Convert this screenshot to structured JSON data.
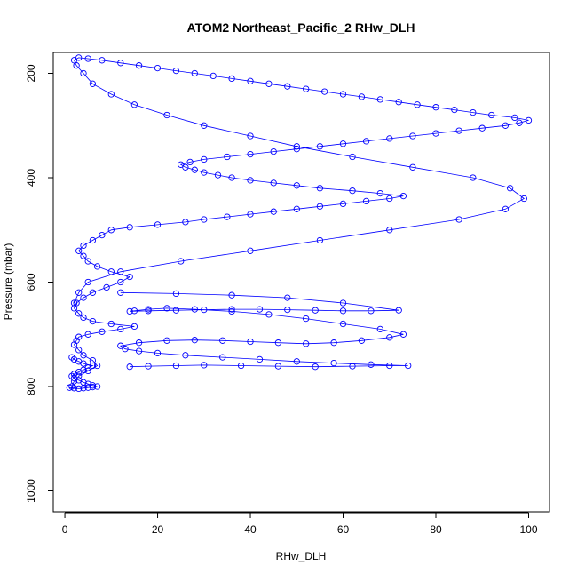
{
  "chart_data": {
    "type": "scatter",
    "title": "ATOM2 Northeast_Pacific_2 RHw_DLH",
    "xlabel": "RHw_DLH",
    "ylabel": "Pressure (mbar)",
    "xlim": [
      -2.5,
      104.5
    ],
    "ylim": [
      1040,
      160
    ],
    "y_reversed": true,
    "x_ticks": [
      0,
      20,
      40,
      60,
      80,
      100
    ],
    "y_ticks": [
      200,
      400,
      600,
      800,
      1000
    ],
    "marker": "open-circle",
    "connected_lines": true,
    "color": "#0000ff",
    "grid": false,
    "series": [
      {
        "x": [
          1.5,
          2,
          3,
          5,
          7,
          6,
          4,
          3,
          2,
          2.5,
          3,
          5,
          8,
          12,
          15,
          10,
          6,
          4,
          3,
          2,
          2.5,
          4,
          6,
          9,
          12,
          14,
          10,
          7,
          5,
          4,
          3,
          4,
          6,
          8,
          10,
          14,
          20,
          26,
          30,
          35,
          40,
          45,
          50,
          55,
          60,
          65,
          70,
          73,
          68,
          62,
          55,
          50,
          45,
          40,
          36,
          33,
          30,
          28,
          26,
          25,
          27,
          30,
          35,
          40,
          45,
          50,
          55,
          60,
          65,
          70,
          75,
          80,
          85,
          90,
          95,
          98,
          100,
          97,
          92,
          88,
          84,
          80,
          76,
          72,
          68,
          64,
          60,
          56,
          52,
          48,
          44,
          40,
          36,
          32,
          28,
          24,
          20,
          16,
          12,
          8,
          5,
          3,
          2,
          2.5,
          4,
          6,
          10,
          15,
          22,
          30,
          40,
          50,
          62,
          75,
          88,
          96,
          99,
          95,
          85,
          70,
          55,
          40,
          25,
          12,
          5,
          3,
          2
        ],
        "y": [
          800,
          790,
          780,
          770,
          760,
          750,
          740,
          730,
          720,
          712,
          705,
          700,
          695,
          690,
          685,
          680,
          675,
          668,
          660,
          650,
          640,
          630,
          620,
          610,
          600,
          590,
          580,
          570,
          560,
          550,
          540,
          530,
          520,
          510,
          500,
          495,
          490,
          485,
          480,
          475,
          470,
          465,
          460,
          455,
          450,
          445,
          440,
          435,
          430,
          425,
          420,
          415,
          410,
          405,
          400,
          395,
          390,
          385,
          380,
          375,
          370,
          365,
          360,
          355,
          350,
          345,
          340,
          335,
          330,
          325,
          320,
          315,
          310,
          305,
          300,
          295,
          290,
          285,
          280,
          275,
          270,
          265,
          260,
          255,
          250,
          245,
          240,
          235,
          230,
          225,
          220,
          215,
          210,
          205,
          200,
          195,
          190,
          185,
          180,
          175,
          172,
          170,
          175,
          185,
          200,
          220,
          240,
          260,
          280,
          300,
          320,
          340,
          360,
          380,
          400,
          420,
          440,
          460,
          480,
          500,
          520,
          540,
          560,
          580,
          600,
          620,
          640
        ]
      },
      {
        "x": [
          14,
          18,
          24,
          30,
          38,
          46,
          54,
          62,
          70,
          74,
          66,
          58,
          50,
          42,
          34,
          26,
          20,
          16,
          13,
          12,
          16,
          22,
          28,
          34,
          40,
          46,
          52,
          58,
          64,
          70,
          73,
          68,
          60,
          52,
          44,
          36,
          28,
          22,
          18,
          15,
          14,
          18,
          24,
          30,
          36,
          42,
          48,
          54,
          60,
          66,
          72,
          60,
          48,
          36,
          24,
          12
        ],
        "y": [
          762,
          761,
          760,
          759,
          760,
          761,
          762,
          761,
          760,
          760,
          758,
          755,
          752,
          748,
          744,
          740,
          736,
          732,
          728,
          722,
          716,
          712,
          711,
          712,
          714,
          716,
          718,
          716,
          712,
          706,
          700,
          690,
          680,
          670,
          662,
          656,
          652,
          650,
          652,
          655,
          656,
          655,
          654,
          653,
          652,
          652,
          653,
          654,
          655,
          655,
          654,
          640,
          630,
          625,
          622,
          620
        ]
      },
      {
        "x": [
          1,
          2,
          3,
          4,
          5,
          6,
          7,
          6,
          5,
          4,
          3,
          2,
          1.5,
          2,
          3,
          4,
          5,
          6,
          4,
          3,
          2,
          1.5
        ],
        "y": [
          802,
          803,
          804,
          803,
          802,
          801,
          800,
          798,
          795,
          792,
          788,
          784,
          780,
          776,
          772,
          768,
          764,
          760,
          756,
          752,
          748,
          744
        ]
      }
    ]
  }
}
